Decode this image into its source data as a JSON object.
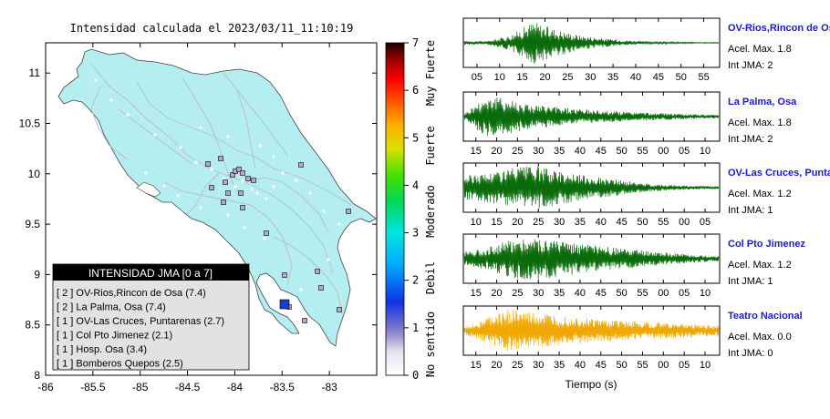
{
  "map": {
    "title": "Intensidad calculada el 2023/03/11_11:10:19",
    "x_ticks": [
      "-86",
      "-85.5",
      "-85",
      "-84.5",
      "-84",
      "-83.5",
      "-83"
    ],
    "y_ticks": [
      "11",
      "10.5",
      "10",
      "9.5",
      "9",
      "8.5",
      "8"
    ],
    "xlim": [
      -86,
      -82.5
    ],
    "ylim": [
      8,
      11.3
    ],
    "land_color": "#b4eef0",
    "epicenter_color": "#1a3cd6",
    "legend": {
      "title": "INTENSIDAD JMA [0 a 7]",
      "items": [
        "[ 2 ]  OV-Rios,Rincon de Osa (7.4)",
        "[ 2 ]  La Palma, Osa (7.4)",
        "[ 1 ]  OV-Las Cruces, Puntarenas (2.7)",
        "[ 1 ]  Col Pto Jimenez (2.1)",
        "[ 1 ]  Hosp. Osa (3.4)",
        "[ 1 ]  Bomberos Quepos (2.5)"
      ]
    }
  },
  "colorbar": {
    "ticks": [
      "7",
      "6",
      "5",
      "4",
      "3",
      "2",
      "1",
      "0"
    ],
    "labels": [
      "Muy Fuerte",
      "Fuerte",
      "Moderado",
      "Debil",
      "No sentido"
    ]
  },
  "traces": [
    {
      "name": "OV-Rios,Rincon de Osa",
      "acel": "Acel. Max. 1.8",
      "jma": "Int JMA: 2",
      "color": "#0a6b0a",
      "ticks": [
        "05",
        "10",
        "15",
        "20",
        "25",
        "30",
        "35",
        "40",
        "45",
        "50",
        "55"
      ]
    },
    {
      "name": "La Palma, Osa",
      "acel": "Acel. Max. 1.8",
      "jma": "Int JMA: 2",
      "color": "#0a6b0a",
      "ticks": [
        "15",
        "20",
        "25",
        "30",
        "35",
        "40",
        "45",
        "50",
        "55",
        "00",
        "05",
        "10"
      ]
    },
    {
      "name": "OV-Las Cruces, Puntarenas",
      "acel": "Acel. Max. 1.2",
      "jma": "Int JMA: 1",
      "color": "#0a6b0a",
      "ticks": [
        "10",
        "15",
        "20",
        "25",
        "30",
        "35",
        "40",
        "45",
        "50",
        "55",
        "00",
        "05"
      ]
    },
    {
      "name": "Col Pto Jimenez",
      "acel": "Acel. Max. 1.2",
      "jma": "Int JMA: 1",
      "color": "#0a6b0a",
      "ticks": [
        "15",
        "20",
        "25",
        "30",
        "35",
        "40",
        "45",
        "50",
        "55",
        "00",
        "05",
        "10"
      ]
    },
    {
      "name": "Teatro Nacional",
      "acel": "Acel. Max. 0.0",
      "jma": "Int JMA: 0",
      "color": "#f0a800",
      "ticks": [
        "15",
        "20",
        "25",
        "30",
        "35",
        "40",
        "45",
        "50",
        "55",
        "00",
        "05",
        "10"
      ]
    }
  ],
  "xlabel": "Tiempo (s)"
}
